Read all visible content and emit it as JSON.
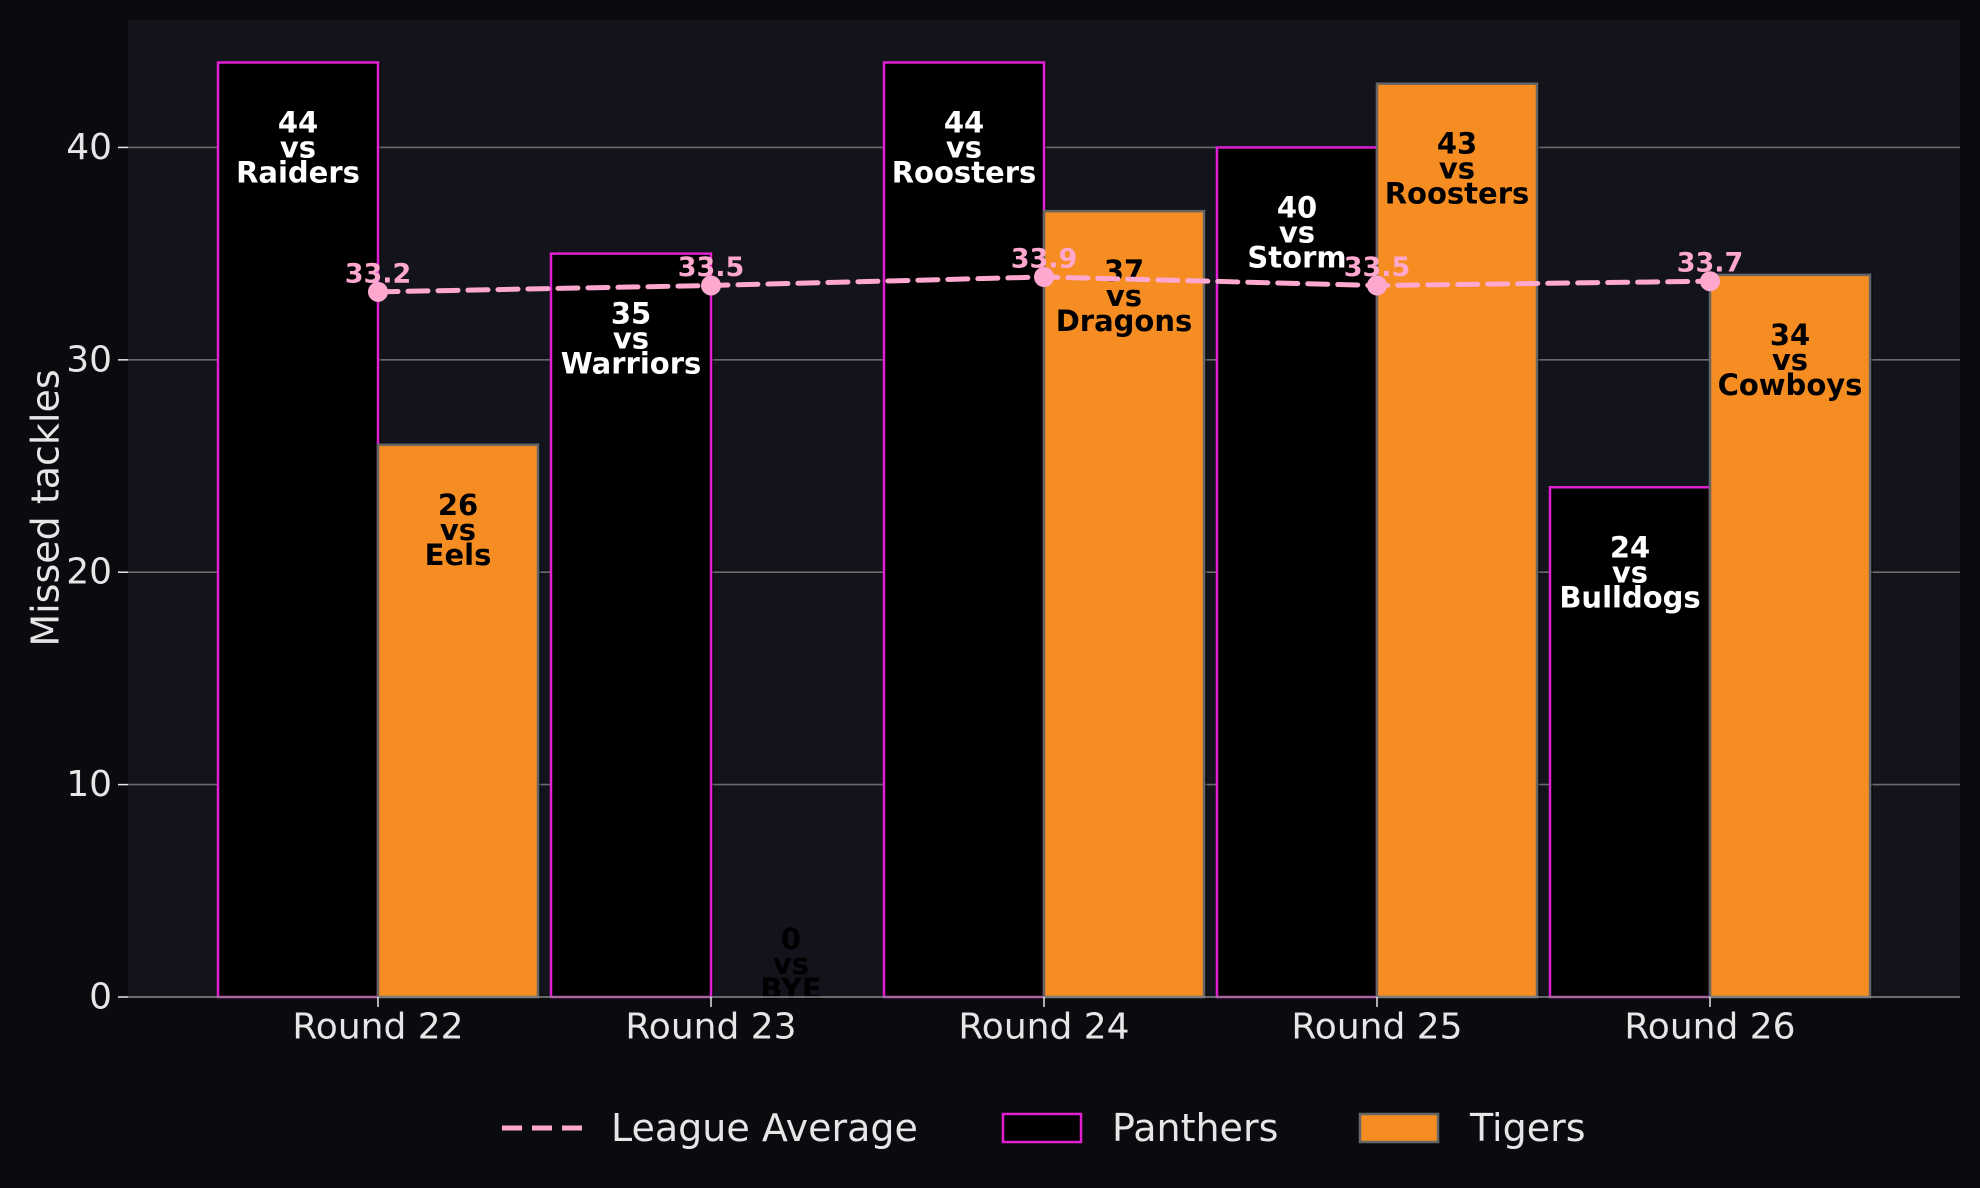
{
  "chart_data": {
    "type": "bar",
    "categories": [
      "Round 22",
      "Round 23",
      "Round 24",
      "Round 25",
      "Round 26"
    ],
    "ylabel": "Missed tackles",
    "xlabel": "",
    "title": "",
    "ylim": [
      0,
      46
    ],
    "yticks": [
      0,
      10,
      20,
      30,
      40
    ],
    "grid": "y",
    "legend_position": "bottom-center",
    "series": [
      {
        "name": "Panthers",
        "values": [
          44,
          35,
          44,
          40,
          24
        ],
        "opponents": [
          "Raiders",
          "Warriors",
          "Roosters",
          "Storm",
          "Bulldogs"
        ],
        "fill": "#000000",
        "edge": "#e020d0",
        "label_color": "#ffffff"
      },
      {
        "name": "Tigers",
        "values": [
          26,
          0,
          37,
          43,
          34
        ],
        "opponents": [
          "Eels",
          "BYE",
          "Dragons",
          "Roosters",
          "Cowboys"
        ],
        "fill": "#f58d22",
        "edge": "#666666",
        "label_color": "#000000"
      }
    ],
    "line": {
      "name": "League Average",
      "values": [
        33.2,
        33.5,
        33.9,
        33.5,
        33.7
      ],
      "labels": [
        "33.2",
        "33.5",
        "33.9",
        "33.5",
        "33.7"
      ],
      "color": "#ffa8cf",
      "style": "dashed"
    },
    "vs_text": "vs",
    "colors": {
      "background": "#0b0b0f",
      "plot_background": "#13141b",
      "grid": "#6a6a6a",
      "text": "#e6e6e6"
    }
  }
}
